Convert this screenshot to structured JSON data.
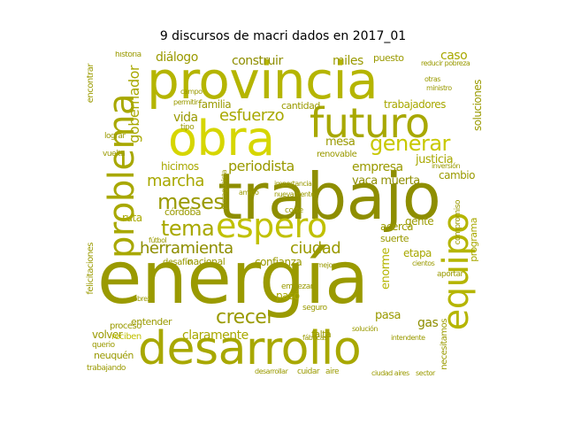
{
  "title": "9 discursos de macri dados en 2017_01",
  "colors": {
    "palette": [
      "#9a9a00",
      "#b5b500",
      "#c8c800",
      "#d6d600",
      "#a8a800",
      "#8e8e00",
      "#c0c000"
    ]
  },
  "words": {
    "energia": "energía",
    "trabajo": "trabajo",
    "provincia": "provincia",
    "obra": "obra",
    "desarrollo": "desarrollo",
    "problema": "problema",
    "futuro": "futuro",
    "espero": "espero",
    "equipo": "equipo",
    "generar": "generar",
    "tema": "tema",
    "meses": "meses",
    "herramienta": "herramienta",
    "crecer": "crecer",
    "esfuerzo": "esfuerzo",
    "periodista": "periodista",
    "marcha": "marcha",
    "ciudad": "ciudad",
    "gobernador": "gobernador",
    "claramente": "claramente",
    "construir": "construir",
    "dialogo": "diálogo",
    "familia": "familia",
    "vida": "vida",
    "miles": "miles",
    "caso": "caso",
    "puesto": "puesto",
    "empresa": "empresa",
    "vaca_muerta": "vaca muerta",
    "justicia": "justicia",
    "cambio": "cambio",
    "trabajadores": "trabajadores",
    "soluciones": "soluciones",
    "mesa": "mesa",
    "renovable": "renovable",
    "cantidad": "cantidad",
    "hicimos": "hicimos",
    "cordoba": "córdoba",
    "ruta": "ruta",
    "confianza": "confianza",
    "nacional": "nacional",
    "desafio": "desafío",
    "acerca": "acerca",
    "suerte": "suerte",
    "etapa": "etapa",
    "gente": "gente",
    "enorme": "enorme",
    "pasa": "pasa",
    "gas": "gas",
    "paso": "pasó",
    "programa": "programa",
    "compromiso": "compromiso",
    "entender": "entender",
    "volver": "volver",
    "proceso": "proceso",
    "reciben": "reciben",
    "neuquen": "neuquén",
    "trabajando": "trabajando",
    "felicitaciones": "felicitaciones",
    "encontrar": "encontrar",
    "lograr": "lograr",
    "historia": "historia",
    "reducir_pobreza": "reducir pobreza",
    "necesitamos": "necesitamos",
    "ciudad_aires": "ciudad aires",
    "sector": "sector",
    "cuidar": "cuidar",
    "aire": "aire",
    "falta": "falta",
    "empezar": "empezar",
    "seguro": "seguro",
    "aportar": "aportar",
    "vuelta": "vuelta",
    "pobreza": "pobreza",
    "querio": "querio",
    "futbol": "fútbol",
    "intendente": "intendente",
    "cientos": "cientos",
    "negociacion": "negociación",
    "mejorar": "mejorar",
    "corte": "corte",
    "amigo": "amigo",
    "nuevamente": "nuevamente",
    "importancia": "importancia",
    "protagonista": "protagonista",
    "argentinos": "argentinos",
    "solucion": "solución",
    "fabricas": "fábricas",
    "tipo": "tipo",
    "campo": "campo",
    "permitir": "permitir",
    "dialogo2": "diálogo",
    "otras": "otras",
    "ministro": "ministro",
    "inversion": "inversión",
    "desarrollar": "desarrollar"
  }
}
